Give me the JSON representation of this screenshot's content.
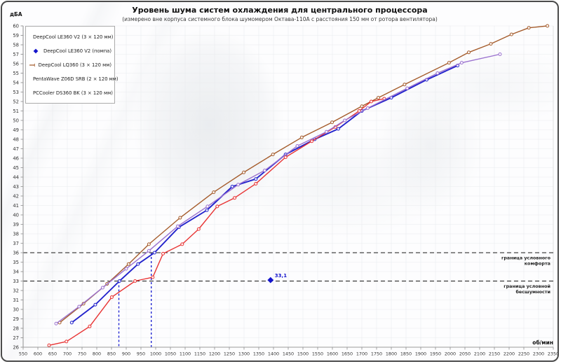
{
  "frame": {
    "border_color": "#4b4b4b",
    "background": "#fdfdfe"
  },
  "colors": {
    "grid": "#e9ebee",
    "axis": "#9a9a9a",
    "tick_text": "#333333",
    "threshold_line": "#161616",
    "guide_line": "#2328d2"
  },
  "chart_data": {
    "type": "line",
    "title": "Уровень шума систем охлаждения для центрального процессора",
    "subtitle": "(измерено вне корпуса системного блока шумомером Октава-110А с расстояния 150 мм от ротора вентилятора)",
    "xlabel": "об/мин",
    "ylabel": "дБА",
    "xlim": [
      550,
      2350
    ],
    "ylim": [
      26,
      60
    ],
    "x_tick_step": 50,
    "y_tick_step": 1,
    "grid": true,
    "legend_position": "top-left",
    "series": [
      {
        "name": "DeepCool LE360 V2 (3 × 120 мм)",
        "color": "#2323cc",
        "marker": "circle",
        "width": 1.9,
        "points": [
          [
            715,
            28.6
          ],
          [
            795,
            30.5
          ],
          [
            877,
            33.0
          ],
          [
            940,
            34.8
          ],
          [
            996,
            36.0
          ],
          [
            1079,
            38.7
          ],
          [
            1174,
            40.5
          ],
          [
            1260,
            43.0
          ],
          [
            1340,
            43.8
          ],
          [
            1441,
            46.4
          ],
          [
            1540,
            48.0
          ],
          [
            1620,
            49.1
          ],
          [
            1700,
            51.0
          ],
          [
            1800,
            52.4
          ],
          [
            1920,
            54.3
          ],
          [
            2025,
            55.8
          ]
        ]
      },
      {
        "name": "DeepCool LE360 V2 (помпа)",
        "color": "#1414cc",
        "marker": "diamond",
        "style": "point",
        "points": [
          [
            1390,
            33.1
          ]
        ],
        "point_label": "33,1"
      },
      {
        "name": "DeepCool LQ360 (3 × 120 мм)",
        "color": "#a55c2c",
        "marker": "circle",
        "width": 1.4,
        "points": [
          [
            674,
            28.6
          ],
          [
            755,
            30.6
          ],
          [
            835,
            32.7
          ],
          [
            908,
            34.8
          ],
          [
            977,
            36.9
          ],
          [
            1083,
            39.7
          ],
          [
            1197,
            42.4
          ],
          [
            1299,
            44.5
          ],
          [
            1398,
            46.4
          ],
          [
            1496,
            48.2
          ],
          [
            1599,
            49.8
          ],
          [
            1700,
            51.5
          ],
          [
            1756,
            52.4
          ],
          [
            1845,
            53.8
          ],
          [
            1996,
            56.1
          ],
          [
            2063,
            57.2
          ],
          [
            2138,
            58.1
          ],
          [
            2208,
            59.1
          ],
          [
            2267,
            59.8
          ],
          [
            2330,
            60.0
          ]
        ]
      },
      {
        "name": "PentaWave Z06D SRB (2 × 120 мм)",
        "color": "#e83333",
        "marker": "circle",
        "width": 1.4,
        "points": [
          [
            638,
            26.2
          ],
          [
            697,
            26.6
          ],
          [
            776,
            28.2
          ],
          [
            851,
            31.3
          ],
          [
            930,
            33.0
          ],
          [
            990,
            33.4
          ],
          [
            1025,
            35.9
          ],
          [
            1090,
            36.9
          ],
          [
            1146,
            38.5
          ],
          [
            1209,
            40.9
          ],
          [
            1268,
            41.8
          ],
          [
            1340,
            43.3
          ],
          [
            1441,
            46.1
          ],
          [
            1530,
            47.8
          ],
          [
            1610,
            49.3
          ],
          [
            1691,
            51.0
          ],
          [
            1732,
            52.0
          ],
          [
            1776,
            52.3
          ]
        ]
      },
      {
        "name": "PCCooler DS360 BK (3 × 120 мм)",
        "color": "#9b72cf",
        "marker": "circle",
        "width": 1.4,
        "points": [
          [
            662,
            28.5
          ],
          [
            740,
            30.3
          ],
          [
            820,
            32.3
          ],
          [
            900,
            34.3
          ],
          [
            977,
            36.2
          ],
          [
            1075,
            38.8
          ],
          [
            1176,
            40.9
          ],
          [
            1280,
            43.2
          ],
          [
            1370,
            44.7
          ],
          [
            1481,
            47.3
          ],
          [
            1580,
            48.8
          ],
          [
            1642,
            50.0
          ],
          [
            1720,
            51.3
          ],
          [
            1854,
            53.4
          ],
          [
            1957,
            55.0
          ],
          [
            2039,
            56.1
          ],
          [
            2169,
            57.0
          ]
        ]
      }
    ],
    "reference_lines": {
      "horizontal": [
        {
          "value": 36,
          "label": "граница условного комфорта",
          "label_lines": [
            "граница  условного",
            "комфорта"
          ]
        },
        {
          "value": 33,
          "label": "граница условной бесшумности",
          "label_lines": [
            "граница  условной",
            "бесшумности"
          ]
        }
      ],
      "vertical": [
        {
          "value": 875,
          "to_value": 33
        },
        {
          "value": 985,
          "to_value": 36
        }
      ]
    }
  }
}
